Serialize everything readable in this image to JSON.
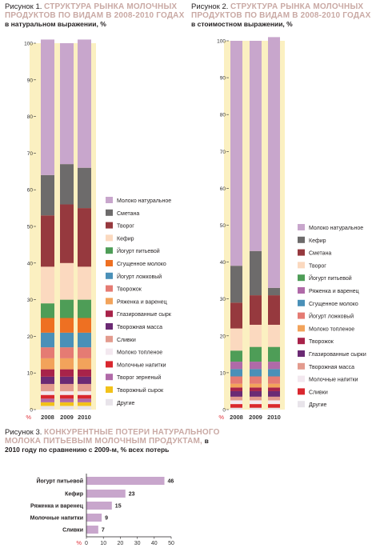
{
  "colors": {
    "panel": "#fbf0c1",
    "pct": "#e0323b",
    "bar_h": "#c8a6cc"
  },
  "fig1": {
    "num": "Рисунок 1.",
    "title": "СТРУКТУРА РЫНКА МОЛОЧНЫХ ПРОДУКТОВ ПО ВИДАМ В 2008-2010 ГОДАХ",
    "subtitle": "в натуральном выражении, %"
  },
  "fig2": {
    "num": "Рисунок 2.",
    "title": "СТРУКТУРА РЫНКА МОЛОЧНЫХ ПРОДУКТОВ ПО ВИДАМ В 2008-2010 ГОДАХ",
    "subtitle": "в стоимостном выражении, %"
  },
  "fig3": {
    "num": "Рисунок 3.",
    "title": "КОНКУРЕНТНЫЕ ПОТЕРИ НАТУРАЛЬНОГО МОЛОКА ПИТЬЕВЫМ МОЛОЧНЫМ ПРОДУКТАМ,",
    "subtitle": "в 2010 году по сравнению с 2009-м, % всех потерь"
  },
  "chart_data": [
    {
      "type": "bar",
      "stacked": true,
      "categories": [
        "2008",
        "2009",
        "2010"
      ],
      "ylim": [
        0,
        100
      ],
      "y_ticks": [
        0,
        10,
        20,
        30,
        40,
        50,
        60,
        70,
        80,
        90,
        100
      ],
      "y_unit": "%",
      "grid": false,
      "legend_position": "right",
      "series": [
        {
          "name": "Другие",
          "color": "#e8e4ea",
          "values": [
            1,
            1,
            1
          ]
        },
        {
          "name": "Творожный сырок",
          "color": "#f2c21a",
          "values": [
            1,
            1,
            1
          ]
        },
        {
          "name": "Творог зерненый",
          "color": "#b06aa8",
          "values": [
            1,
            1,
            1
          ]
        },
        {
          "name": "Молочные напитки",
          "color": "#d9272e",
          "values": [
            1,
            1,
            1
          ]
        },
        {
          "name": "Молоко топленое",
          "color": "#f3e8ef",
          "values": [
            1,
            1,
            1
          ]
        },
        {
          "name": "Сливки",
          "color": "#e39b8e",
          "values": [
            2,
            2,
            2
          ]
        },
        {
          "name": "Творожная масса",
          "color": "#6b2a74",
          "values": [
            2,
            2,
            2
          ]
        },
        {
          "name": "Глазированные сырк",
          "color": "#a8234a",
          "values": [
            2,
            2,
            2
          ]
        },
        {
          "name": "Ряженка и варенец",
          "color": "#f2a35b",
          "values": [
            3,
            3,
            3
          ]
        },
        {
          "name": "Творожок",
          "color": "#e57b73",
          "values": [
            3,
            3,
            3
          ]
        },
        {
          "name": "Йогурт ложковый",
          "color": "#4a90b8",
          "values": [
            4,
            4,
            4
          ]
        },
        {
          "name": "Сгущенное молоко",
          "color": "#ee7022",
          "values": [
            4,
            4,
            4
          ]
        },
        {
          "name": "Йогурт питьевой",
          "color": "#4e9d57",
          "values": [
            4,
            5,
            5
          ]
        },
        {
          "name": "Кефир",
          "color": "#fbd9bf",
          "values": [
            10,
            10,
            9
          ]
        },
        {
          "name": "Творог",
          "color": "#96393e",
          "values": [
            14,
            16,
            16
          ]
        },
        {
          "name": "Сметана",
          "color": "#6d6b6b",
          "values": [
            11,
            11,
            11
          ]
        },
        {
          "name": "Молоко натуральное",
          "color": "#c8a6cc",
          "values": [
            37,
            33,
            35
          ]
        }
      ]
    },
    {
      "type": "bar",
      "stacked": true,
      "categories": [
        "2008",
        "2009",
        "2010"
      ],
      "ylim": [
        0,
        100
      ],
      "y_ticks": [
        0,
        10,
        20,
        30,
        40,
        50,
        60,
        70,
        80,
        90,
        100
      ],
      "y_unit": "%",
      "grid": false,
      "legend_position": "right",
      "series": [
        {
          "name": "Другие",
          "color": "#e8e4ea",
          "values": [
            0.5,
            0.5,
            0.5
          ]
        },
        {
          "name": "Сливки",
          "color": "#d9272e",
          "values": [
            1,
            1,
            1
          ]
        },
        {
          "name": "Молочные напитки",
          "color": "#f3e8ef",
          "values": [
            1,
            1,
            1
          ]
        },
        {
          "name": "Творожная масса",
          "color": "#e39b8e",
          "values": [
            1,
            1,
            1
          ]
        },
        {
          "name": "Глазированные сырки",
          "color": "#6b2a74",
          "values": [
            1.5,
            1.5,
            1.5
          ]
        },
        {
          "name": "Творожок",
          "color": "#a8234a",
          "values": [
            1,
            1,
            1
          ]
        },
        {
          "name": "Молоко топленое",
          "color": "#f2a35b",
          "values": [
            1,
            1,
            1
          ]
        },
        {
          "name": "Йогурт ложковый",
          "color": "#e57b73",
          "values": [
            2,
            2,
            2
          ]
        },
        {
          "name": "Сгущенное молоко",
          "color": "#4a90b8",
          "values": [
            2,
            2,
            2
          ]
        },
        {
          "name": "Ряженка и варенец",
          "color": "#b06aa8",
          "values": [
            2,
            2,
            2
          ]
        },
        {
          "name": "Йогурт питьевой",
          "color": "#4e9d57",
          "values": [
            3,
            4,
            4
          ]
        },
        {
          "name": "Творог",
          "color": "#fbd9bf",
          "values": [
            6,
            6,
            6
          ]
        },
        {
          "name": "Сметана",
          "color": "#96393e",
          "values": [
            7,
            8,
            8
          ]
        },
        {
          "name": "Кефир",
          "color": "#6d6b6b",
          "values": [
            10,
            12,
            2
          ]
        },
        {
          "name": "Молоко натуральное",
          "color": "#c8a6cc",
          "values": [
            61,
            57,
            68
          ]
        }
      ]
    },
    {
      "type": "bar",
      "orientation": "horizontal",
      "categories": [
        "Йогурт питьевой",
        "Кефир",
        "Ряженка и варенец",
        "Молочные напитки",
        "Сливки"
      ],
      "values": [
        46,
        23,
        15,
        9,
        7
      ],
      "xlim": [
        0,
        50
      ],
      "x_ticks": [
        0,
        10,
        20,
        30,
        40,
        50
      ],
      "x_unit": "%",
      "grid": false
    }
  ]
}
